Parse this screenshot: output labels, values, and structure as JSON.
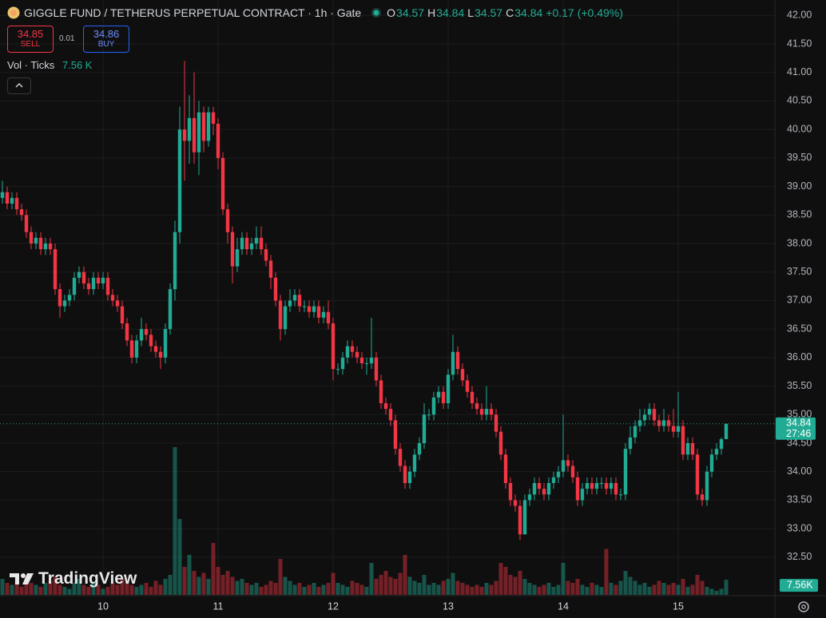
{
  "chart_data": {
    "type": "candlestick",
    "title": "GIGGLE FUND / TETHERUS PERPETUAL CONTRACT · 1h · Gate",
    "ohlc_labels": [
      "O",
      "H",
      "L",
      "C"
    ],
    "change": "+0.17",
    "change_pct": "(+0.49%)",
    "sell_price": "34.85",
    "sell_label": "SELL",
    "spread": "0.01",
    "buy_price": "34.86",
    "buy_label": "BUY",
    "volume_title": "Vol · Ticks",
    "volume_label": "7.56 K",
    "volume_badge": "7.56K",
    "countdown": "27:46",
    "watermark": "TradingView",
    "up_color": "#22ab94",
    "down_color": "#f23645",
    "grid": true,
    "ylim": [
      31.84,
      42.27
    ],
    "yticks": [
      {
        "value": 32.5,
        "label": "32.50"
      },
      {
        "value": 33,
        "label": "33.00"
      },
      {
        "value": 33.5,
        "label": "33.50"
      },
      {
        "value": 34,
        "label": "34.00"
      },
      {
        "value": 34.5,
        "label": "34.50"
      },
      {
        "value": 35,
        "label": "35.00"
      },
      {
        "value": 35.5,
        "label": "35.50"
      },
      {
        "value": 36,
        "label": "36.00"
      },
      {
        "value": 36.5,
        "label": "36.50"
      },
      {
        "value": 37,
        "label": "37.00"
      },
      {
        "value": 37.5,
        "label": "37.50"
      },
      {
        "value": 38,
        "label": "38.00"
      },
      {
        "value": 38.5,
        "label": "38.50"
      },
      {
        "value": 39,
        "label": "39.00"
      },
      {
        "value": 39.5,
        "label": "39.50"
      },
      {
        "value": 40,
        "label": "40.00"
      },
      {
        "value": 40.5,
        "label": "40.50"
      },
      {
        "value": 41,
        "label": "41.00"
      },
      {
        "value": 41.5,
        "label": "41.50"
      },
      {
        "value": 42,
        "label": "42.00"
      }
    ],
    "categories": [
      null,
      null,
      null,
      null,
      null,
      null,
      null,
      null,
      null,
      null,
      null,
      null,
      null,
      null,
      null,
      null,
      null,
      null,
      null,
      null,
      null,
      "10",
      null,
      null,
      null,
      null,
      null,
      null,
      null,
      null,
      null,
      null,
      null,
      null,
      null,
      null,
      null,
      null,
      null,
      null,
      null,
      null,
      null,
      null,
      null,
      "11",
      null,
      null,
      null,
      null,
      null,
      null,
      null,
      null,
      null,
      null,
      null,
      null,
      null,
      null,
      null,
      null,
      null,
      null,
      null,
      null,
      null,
      null,
      null,
      "12",
      null,
      null,
      null,
      null,
      null,
      null,
      null,
      null,
      null,
      null,
      null,
      null,
      null,
      null,
      null,
      null,
      null,
      null,
      null,
      null,
      null,
      null,
      null,
      "13",
      null,
      null,
      null,
      null,
      null,
      null,
      null,
      null,
      null,
      null,
      null,
      null,
      null,
      null,
      null,
      null,
      null,
      null,
      null,
      null,
      null,
      null,
      null,
      "14",
      null,
      null,
      null,
      null,
      null,
      null,
      null,
      null,
      null,
      null,
      null,
      null,
      null,
      null,
      null,
      null,
      null,
      null,
      null,
      null,
      null,
      null,
      null,
      "15",
      null,
      null,
      null,
      null,
      null,
      null,
      null,
      null,
      null,
      null
    ],
    "open": [
      38.8,
      38.9,
      38.7,
      38.8,
      38.6,
      38.5,
      38.2,
      38.0,
      38.1,
      37.9,
      38.0,
      37.9,
      37.2,
      36.9,
      37.0,
      37.1,
      37.4,
      37.5,
      37.3,
      37.2,
      37.4,
      37.3,
      37.4,
      37.1,
      37.0,
      36.9,
      36.6,
      36.3,
      36.0,
      36.3,
      36.5,
      36.4,
      36.2,
      36.1,
      36.0,
      36.5,
      37.2,
      38.2,
      40.0,
      39.8,
      40.2,
      39.6,
      40.3,
      39.8,
      40.3,
      40.1,
      39.5,
      38.6,
      38.2,
      37.6,
      37.9,
      38.1,
      37.9,
      38.0,
      38.1,
      37.9,
      37.7,
      37.4,
      37.0,
      36.5,
      36.9,
      37.0,
      37.1,
      36.9,
      36.9,
      36.8,
      36.9,
      36.7,
      36.8,
      36.6,
      35.8,
      35.8,
      36.0,
      36.2,
      36.1,
      36.0,
      35.9,
      35.9,
      36.0,
      35.6,
      35.2,
      35.1,
      34.9,
      34.4,
      34.1,
      33.8,
      34.0,
      34.3,
      34.5,
      35.0,
      35.0,
      35.3,
      35.4,
      35.2,
      35.7,
      36.1,
      35.8,
      35.6,
      35.4,
      35.2,
      35.1,
      35.0,
      35.1,
      35.0,
      34.7,
      34.3,
      33.8,
      33.5,
      33.4,
      32.9,
      33.5,
      33.6,
      33.8,
      33.7,
      33.6,
      33.8,
      33.9,
      34.0,
      34.2,
      34.1,
      33.9,
      33.5,
      33.7,
      33.8,
      33.7,
      33.8,
      33.8,
      33.7,
      33.8,
      33.6,
      33.6,
      34.4,
      34.6,
      34.8,
      34.9,
      35.0,
      35.1,
      34.9,
      34.8,
      34.9,
      34.8,
      34.7,
      34.8,
      34.3,
      34.5,
      34.3,
      33.6,
      33.5,
      34.0,
      34.3,
      34.4,
      34.57
    ],
    "high": [
      39.1,
      39.0,
      38.9,
      38.9,
      38.7,
      38.6,
      38.3,
      38.2,
      38.2,
      38.1,
      38.1,
      38.0,
      37.3,
      37.1,
      37.2,
      37.5,
      37.6,
      37.6,
      37.4,
      37.5,
      37.5,
      37.5,
      37.5,
      37.2,
      37.1,
      37.0,
      36.7,
      36.4,
      36.4,
      36.7,
      36.6,
      36.5,
      36.3,
      36.2,
      36.6,
      37.3,
      38.4,
      40.4,
      41.2,
      40.6,
      41.0,
      40.5,
      40.4,
      40.4,
      40.4,
      40.2,
      39.6,
      38.7,
      38.3,
      38.1,
      38.2,
      38.2,
      38.1,
      38.3,
      38.3,
      38.0,
      37.8,
      37.5,
      37.1,
      37.0,
      37.2,
      37.2,
      37.2,
      37.0,
      37.0,
      37.0,
      37.0,
      36.9,
      37.0,
      36.7,
      35.9,
      36.1,
      36.3,
      36.3,
      36.2,
      36.1,
      36.0,
      36.7,
      36.1,
      35.7,
      35.3,
      35.2,
      35.0,
      34.5,
      34.2,
      34.1,
      34.4,
      34.6,
      35.2,
      35.1,
      35.4,
      35.5,
      35.5,
      35.8,
      36.4,
      36.2,
      35.9,
      35.7,
      35.5,
      35.3,
      35.2,
      35.5,
      35.2,
      35.1,
      34.8,
      34.4,
      33.9,
      33.6,
      33.5,
      33.6,
      33.7,
      33.9,
      33.9,
      33.8,
      33.9,
      34.0,
      34.1,
      35.0,
      34.3,
      34.2,
      34.0,
      33.8,
      33.9,
      33.9,
      33.9,
      33.9,
      33.9,
      33.9,
      33.9,
      33.7,
      34.5,
      34.8,
      34.9,
      35.1,
      35.1,
      35.2,
      35.2,
      35.0,
      35.1,
      35.0,
      35.1,
      35.4,
      34.9,
      34.6,
      34.6,
      34.4,
      33.7,
      34.1,
      34.4,
      34.5,
      34.6,
      34.84
    ],
    "low": [
      38.7,
      38.6,
      38.6,
      38.5,
      38.4,
      38.1,
      37.9,
      37.9,
      37.8,
      37.8,
      37.8,
      37.1,
      36.7,
      36.8,
      36.9,
      37.0,
      37.3,
      37.2,
      37.1,
      37.1,
      37.2,
      37.2,
      37.0,
      36.9,
      36.8,
      36.5,
      36.2,
      35.9,
      35.9,
      36.2,
      36.3,
      36.1,
      36.0,
      35.8,
      35.9,
      36.4,
      37.0,
      38.0,
      39.1,
      39.4,
      39.4,
      39.2,
      39.6,
      39.7,
      39.9,
      39.3,
      38.5,
      38.0,
      37.3,
      37.5,
      37.8,
      37.8,
      37.8,
      37.9,
      37.8,
      37.6,
      37.2,
      36.9,
      36.3,
      36.4,
      36.8,
      36.9,
      36.8,
      36.8,
      36.7,
      36.7,
      36.6,
      36.6,
      36.5,
      35.6,
      35.7,
      35.7,
      35.9,
      36.0,
      35.9,
      35.8,
      35.7,
      35.8,
      35.5,
      35.1,
      35.0,
      34.8,
      34.3,
      34.0,
      33.7,
      33.7,
      33.9,
      34.2,
      34.4,
      34.9,
      34.9,
      35.2,
      35.1,
      35.1,
      35.6,
      35.7,
      35.5,
      35.3,
      35.1,
      35.0,
      34.9,
      34.9,
      34.9,
      34.6,
      34.2,
      33.7,
      33.4,
      33.3,
      32.8,
      32.9,
      33.4,
      33.5,
      33.6,
      33.5,
      33.5,
      33.7,
      33.8,
      33.9,
      34.0,
      33.8,
      33.4,
      33.4,
      33.6,
      33.6,
      33.6,
      33.7,
      33.6,
      33.6,
      33.5,
      33.5,
      33.5,
      34.3,
      34.5,
      34.7,
      34.8,
      34.9,
      34.8,
      34.7,
      34.7,
      34.7,
      34.6,
      34.6,
      34.2,
      34.2,
      34.2,
      33.5,
      33.4,
      33.4,
      33.9,
      34.2,
      34.3,
      34.57
    ],
    "close": [
      38.9,
      38.7,
      38.8,
      38.6,
      38.5,
      38.2,
      38.0,
      38.1,
      37.9,
      38.0,
      37.9,
      37.2,
      36.9,
      37.0,
      37.1,
      37.4,
      37.5,
      37.3,
      37.2,
      37.4,
      37.3,
      37.4,
      37.1,
      37.0,
      36.9,
      36.6,
      36.3,
      36.0,
      36.3,
      36.5,
      36.4,
      36.2,
      36.1,
      36.0,
      36.5,
      37.2,
      38.2,
      40.0,
      39.8,
      40.2,
      39.6,
      40.3,
      39.8,
      40.3,
      40.1,
      39.5,
      38.6,
      38.2,
      37.6,
      37.9,
      38.1,
      37.9,
      38.0,
      38.1,
      37.9,
      37.7,
      37.4,
      37.0,
      36.5,
      36.9,
      37.0,
      37.1,
      36.9,
      36.9,
      36.8,
      36.9,
      36.7,
      36.8,
      36.6,
      35.8,
      35.8,
      36.0,
      36.2,
      36.1,
      36.0,
      35.9,
      35.9,
      36.0,
      35.6,
      35.2,
      35.1,
      34.9,
      34.4,
      34.1,
      33.8,
      34.0,
      34.3,
      34.5,
      35.0,
      35.0,
      35.3,
      35.4,
      35.2,
      35.7,
      36.1,
      35.8,
      35.6,
      35.4,
      35.2,
      35.1,
      35.0,
      35.1,
      35.0,
      34.7,
      34.3,
      33.8,
      33.5,
      33.4,
      32.9,
      33.5,
      33.6,
      33.8,
      33.7,
      33.6,
      33.8,
      33.9,
      34.0,
      34.2,
      34.1,
      33.9,
      33.5,
      33.7,
      33.8,
      33.7,
      33.8,
      33.8,
      33.7,
      33.8,
      33.6,
      33.6,
      34.4,
      34.6,
      34.8,
      34.9,
      35.0,
      35.1,
      34.9,
      34.8,
      34.9,
      34.8,
      34.7,
      34.8,
      34.3,
      34.5,
      34.3,
      33.6,
      33.5,
      34.0,
      34.3,
      34.4,
      34.57,
      34.84
    ],
    "volume": [
      8,
      6,
      5,
      7,
      4,
      9,
      6,
      5,
      4,
      6,
      7,
      9,
      5,
      4,
      3,
      6,
      8,
      5,
      4,
      6,
      5,
      3,
      4,
      6,
      5,
      8,
      6,
      5,
      4,
      5,
      6,
      4,
      7,
      5,
      8,
      10,
      74,
      38,
      14,
      20,
      12,
      9,
      11,
      8,
      26,
      14,
      10,
      12,
      9,
      7,
      8,
      6,
      5,
      6,
      4,
      5,
      7,
      6,
      18,
      9,
      7,
      5,
      6,
      4,
      5,
      6,
      4,
      5,
      6,
      11,
      6,
      5,
      4,
      7,
      6,
      5,
      4,
      16,
      8,
      10,
      12,
      9,
      8,
      11,
      20,
      9,
      7,
      6,
      10,
      5,
      6,
      5,
      7,
      8,
      11,
      7,
      6,
      5,
      4,
      5,
      4,
      6,
      5,
      7,
      16,
      14,
      10,
      9,
      12,
      8,
      6,
      5,
      4,
      5,
      6,
      4,
      5,
      16,
      7,
      6,
      8,
      5,
      4,
      6,
      5,
      4,
      23,
      6,
      5,
      7,
      12,
      9,
      7,
      5,
      6,
      4,
      5,
      7,
      6,
      5,
      6,
      5,
      8,
      4,
      5,
      10,
      7,
      4,
      3,
      2,
      3,
      7.56
    ]
  }
}
